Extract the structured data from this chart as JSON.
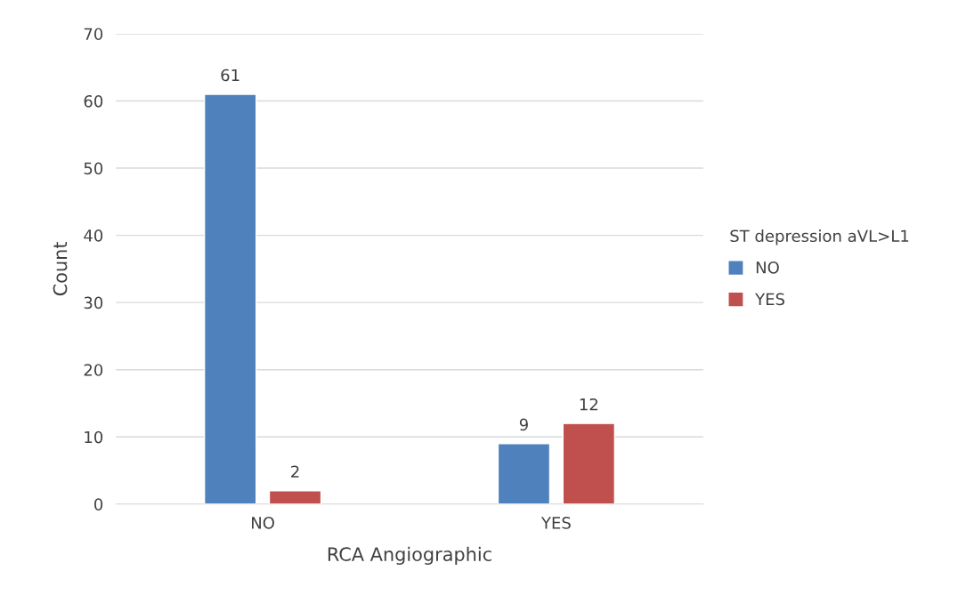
{
  "chart_data": {
    "type": "bar",
    "xlabel": "RCA Angiographic",
    "ylabel": "Count",
    "legend_title": "ST depression aVL>L1",
    "categories": [
      "NO",
      "YES"
    ],
    "series": [
      {
        "name": "NO",
        "color": "#4f81bd",
        "values": [
          61,
          9
        ]
      },
      {
        "name": "YES",
        "color": "#c0504d",
        "values": [
          2,
          12
        ]
      }
    ],
    "ylim": [
      0,
      70
    ],
    "yticks": [
      0,
      10,
      20,
      30,
      40,
      50,
      60,
      70
    ],
    "grid": "y",
    "legend": "right",
    "data_labels": true
  }
}
